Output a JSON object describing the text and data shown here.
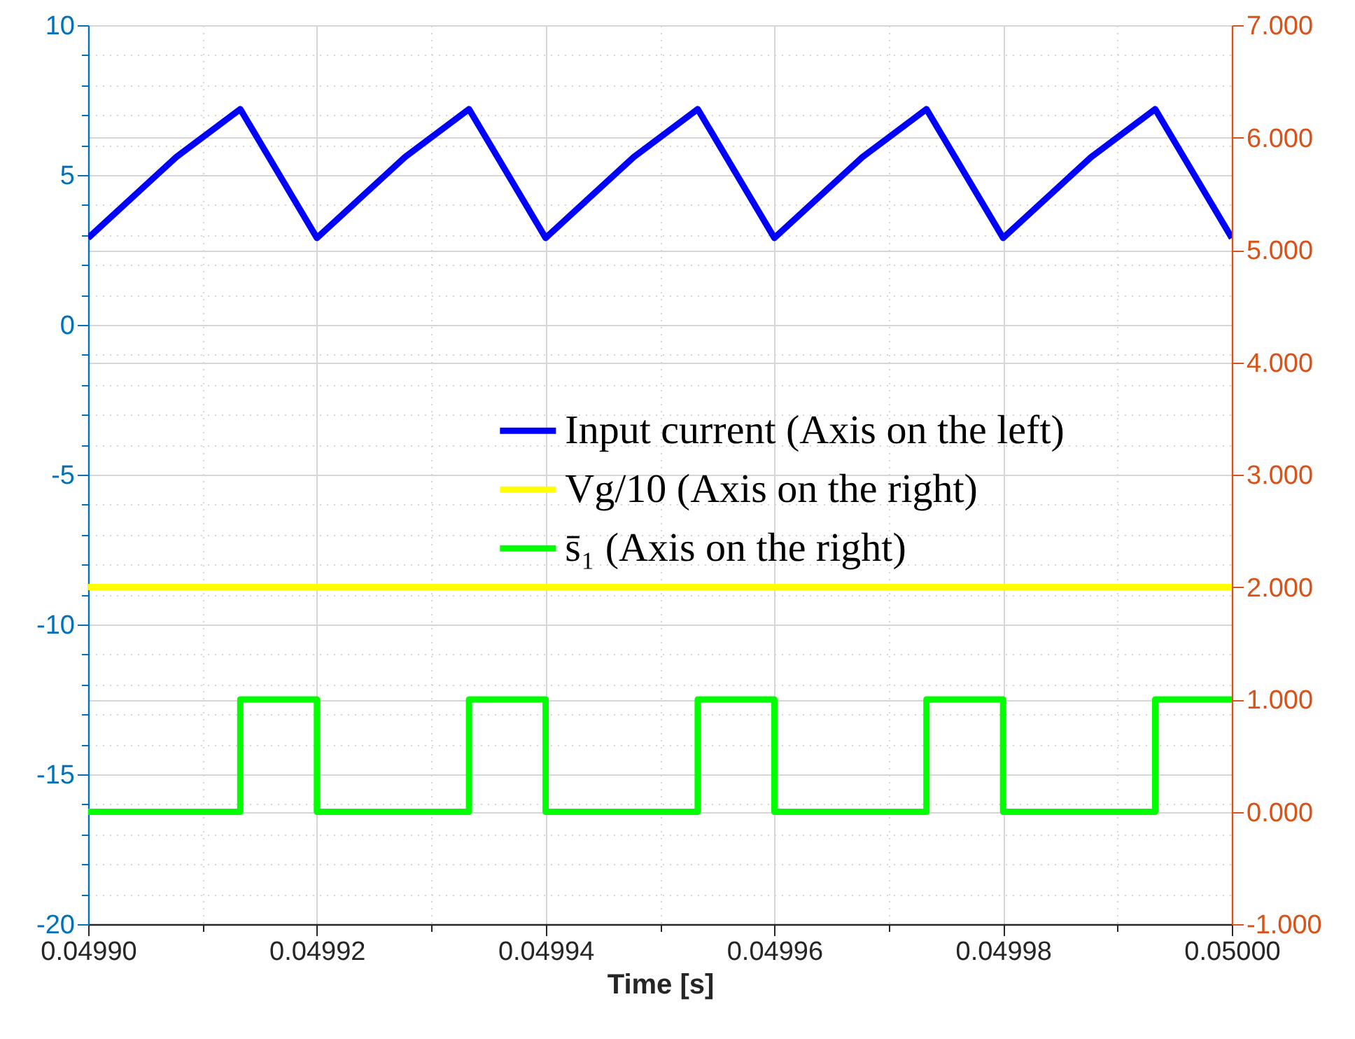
{
  "chart_data": {
    "type": "line",
    "xlabel": "Time [s]",
    "xlim": [
      0.0499,
      0.05
    ],
    "xticks": [
      {
        "value": 0.0499,
        "label": "0.04990"
      },
      {
        "value": 0.04991,
        "label": null
      },
      {
        "value": 0.04992,
        "label": "0.04992"
      },
      {
        "value": 0.04993,
        "label": null
      },
      {
        "value": 0.04994,
        "label": "0.04994"
      },
      {
        "value": 0.04995,
        "label": null
      },
      {
        "value": 0.04996,
        "label": "0.04996"
      },
      {
        "value": 0.04997,
        "label": null
      },
      {
        "value": 0.04998,
        "label": "0.04998"
      },
      {
        "value": 0.04999,
        "label": null
      },
      {
        "value": 0.05,
        "label": "0.05000"
      }
    ],
    "ylim": [
      -20,
      10
    ],
    "yticks": [
      -20,
      {
        "value": -19,
        "label": null
      },
      {
        "value": -18,
        "label": null
      },
      {
        "value": -17,
        "label": null
      },
      {
        "value": -16,
        "label": null
      },
      -15,
      {
        "value": -14,
        "label": null
      },
      {
        "value": -13,
        "label": null
      },
      {
        "value": -12,
        "label": null
      },
      {
        "value": -11,
        "label": null
      },
      -10,
      {
        "value": -9,
        "label": null
      },
      {
        "value": -8,
        "label": null
      },
      {
        "value": -7,
        "label": null
      },
      {
        "value": -6,
        "label": null
      },
      -5,
      {
        "value": -4,
        "label": null
      },
      {
        "value": -3,
        "label": null
      },
      {
        "value": -2,
        "label": null
      },
      {
        "value": -1,
        "label": null
      },
      0,
      {
        "value": 1,
        "label": null
      },
      {
        "value": 2,
        "label": null
      },
      {
        "value": 3,
        "label": null
      },
      {
        "value": 4,
        "label": null
      },
      5,
      {
        "value": 6,
        "label": null
      },
      {
        "value": 7,
        "label": null
      },
      {
        "value": 8,
        "label": null
      },
      {
        "value": 9,
        "label": null
      },
      10
    ],
    "y2lim": [
      -1,
      7
    ],
    "y2ticks": [
      {
        "value": -1,
        "label": "-1.000"
      },
      {
        "value": 0,
        "label": "0.000"
      },
      {
        "value": 1,
        "label": "1.000"
      },
      {
        "value": 2,
        "label": "2.000"
      },
      {
        "value": 3,
        "label": "3.000"
      },
      {
        "value": 4,
        "label": "4.000"
      },
      {
        "value": 5,
        "label": "5.000"
      },
      {
        "value": 6,
        "label": "6.000"
      },
      {
        "value": 7,
        "label": "7.000"
      }
    ],
    "grid": true,
    "legend": "right",
    "series": [
      {
        "name": "Input current (Axis on the left)",
        "color": "#0000ff",
        "x": [
          0.0499,
          0.0499077,
          0.0499133,
          0.04992,
          0.0499277,
          0.0499333,
          0.04994,
          0.0499477,
          0.0499533,
          0.04996,
          0.0499677,
          0.0499733,
          0.04998,
          0.0499877,
          0.0499933,
          0.05
        ],
        "values": [
          2.9,
          5.6,
          7.2,
          2.9,
          5.6,
          7.2,
          2.9,
          5.6,
          7.2,
          2.9,
          5.6,
          7.2,
          2.9,
          5.6,
          7.2,
          2.9
        ]
      },
      {
        "name": "Vg/10 (Axis on the right)",
        "color": "#ffff00",
        "axis": "y2",
        "x": [
          0.0499,
          0.05
        ],
        "values": [
          2,
          2
        ]
      },
      {
        "name": "s̄₁ (Axis on the right)",
        "color": "#00ff00",
        "axis": "y2",
        "type": "step",
        "x": [
          0.0499,
          0.0499133,
          0.04992,
          0.0499333,
          0.04994,
          0.0499533,
          0.04996,
          0.0499733,
          0.04998,
          0.0499933,
          0.05
        ],
        "values": [
          0,
          1,
          0,
          1,
          0,
          1,
          0,
          1,
          0,
          1,
          1
        ]
      }
    ]
  }
}
